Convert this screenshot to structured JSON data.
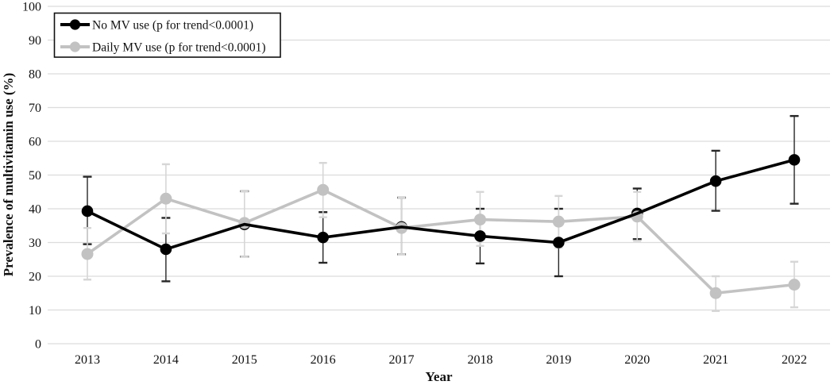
{
  "figure": {
    "background": "#ffffff"
  },
  "chart_data": {
    "type": "line",
    "categories": [
      "2013",
      "2014",
      "2015",
      "2016",
      "2017",
      "2018",
      "2019",
      "2020",
      "2021",
      "2022"
    ],
    "series": [
      {
        "name": "No MV use (p for trend<0.0001)",
        "color": "#000000",
        "error_color": "#262626",
        "values": [
          39.3,
          28.0,
          35.4,
          31.5,
          34.6,
          31.9,
          30.0,
          38.6,
          48.2,
          54.5
        ],
        "err_lo": [
          29.5,
          18.5,
          25.8,
          24.0,
          26.5,
          23.8,
          20.0,
          31.0,
          39.4,
          41.5
        ],
        "err_hi": [
          49.5,
          37.3,
          45.2,
          39.0,
          43.3,
          40.0,
          40.0,
          46.0,
          57.2,
          67.5
        ]
      },
      {
        "name": "Daily MV use (p for trend<0.0001)",
        "color": "#c2c2c2",
        "error_color": "#d6d6d6",
        "values": [
          26.6,
          43.0,
          35.8,
          45.6,
          34.3,
          36.8,
          36.2,
          37.7,
          15.0,
          17.5
        ],
        "err_lo": [
          19.0,
          32.7,
          25.8,
          37.5,
          26.5,
          29.0,
          28.5,
          30.5,
          9.7,
          10.8
        ],
        "err_hi": [
          34.3,
          53.2,
          45.2,
          53.6,
          43.3,
          45.0,
          43.8,
          45.0,
          20.0,
          24.3
        ]
      }
    ],
    "title": "",
    "xlabel": "Year",
    "ylabel": "Prevalence of multivitamin use (%)",
    "ylim": [
      0,
      100
    ],
    "yticks": [
      0,
      10,
      20,
      30,
      40,
      50,
      60,
      70,
      80,
      90,
      100
    ],
    "grid": "horizontal",
    "gridline_color": "#dcdcdc",
    "legend_position": "top-left",
    "legend_border_color": "#111111"
  }
}
